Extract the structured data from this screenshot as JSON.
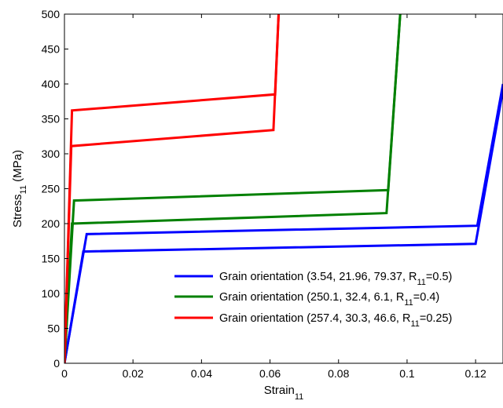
{
  "chart_data": {
    "type": "line",
    "title": "",
    "xlabel": {
      "main": "Strain",
      "sub": "11"
    },
    "ylabel": {
      "main": "Stress",
      "sub": "11",
      "unit": " (MPa)"
    },
    "xlim": [
      0,
      0.128
    ],
    "ylim": [
      0,
      500
    ],
    "xticks": [
      0,
      0.02,
      0.04,
      0.06,
      0.08,
      0.1,
      0.12
    ],
    "xtick_labels": [
      "0",
      "0.02",
      "0.04",
      "0.06",
      "0.08",
      "0.1",
      "0.12"
    ],
    "yticks": [
      0,
      50,
      100,
      150,
      200,
      250,
      300,
      350,
      400,
      450,
      500
    ],
    "ytick_labels": [
      "0",
      "50",
      "100",
      "150",
      "200",
      "250",
      "300",
      "350",
      "400",
      "450",
      "500"
    ],
    "grid": false,
    "legend_position": "bottom-right",
    "series": [
      {
        "legend": {
          "main": "Grain orientation (3.54, 21.96, 79.37, R",
          "sub": "11",
          "tail": "=0.5)"
        },
        "color": "#0000ff",
        "points": [
          [
            0,
            0
          ],
          [
            0.0065,
            185
          ],
          [
            0.1205,
            197
          ],
          [
            0.128,
            400
          ],
          [
            0.128,
            400
          ]
        ],
        "points_lower": [
          [
            0,
            0
          ],
          [
            0.0055,
            160
          ],
          [
            0.12,
            171
          ],
          [
            0.1283,
            400
          ]
        ]
      },
      {
        "legend": {
          "main": "Grain orientation (250.1, 32.4, 6.1, R",
          "sub": "11",
          "tail": "=0.4)"
        },
        "color": "#008000",
        "points": [
          [
            0,
            0
          ],
          [
            0.0028,
            233
          ],
          [
            0.0945,
            248
          ],
          [
            0.098,
            500
          ]
        ],
        "points_lower": [
          [
            0,
            0
          ],
          [
            0.0022,
            200
          ],
          [
            0.094,
            215
          ],
          [
            0.098,
            500
          ]
        ]
      },
      {
        "legend": {
          "main": "Grain orientation (257.4, 30.3, 46.6, R",
          "sub": "11",
          "tail": "=0.25)"
        },
        "color": "#ff0000",
        "points": [
          [
            0,
            0
          ],
          [
            0.0022,
            362
          ],
          [
            0.0615,
            385
          ],
          [
            0.0625,
            500
          ]
        ],
        "points_lower": [
          [
            0,
            0
          ],
          [
            0.002,
            311
          ],
          [
            0.061,
            334
          ],
          [
            0.0625,
            500
          ]
        ]
      }
    ]
  }
}
